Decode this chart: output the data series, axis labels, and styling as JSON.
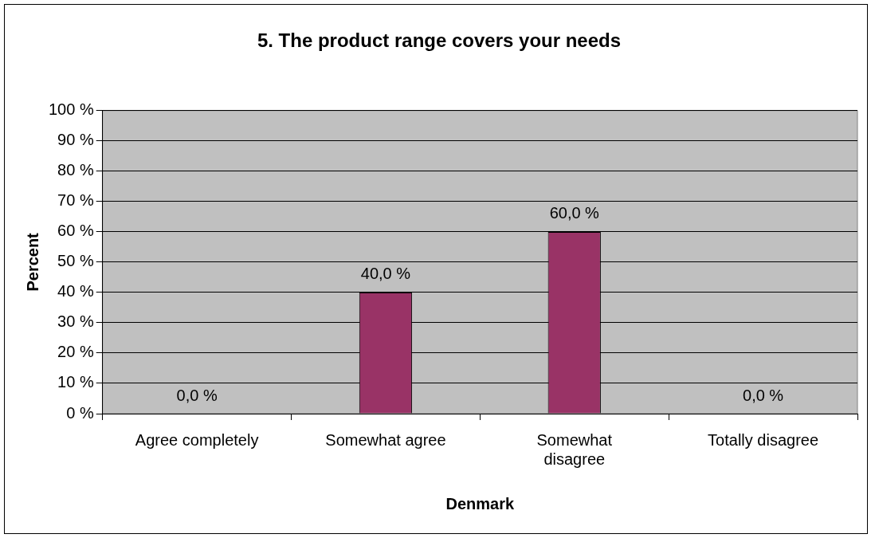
{
  "chart_data": {
    "type": "bar",
    "title": "5. The product range covers your needs",
    "xlabel": "Denmark",
    "ylabel": "Percent",
    "categories": [
      "Agree completely",
      "Somewhat agree",
      "Somewhat disagree",
      "Totally disagree"
    ],
    "values": [
      0,
      40,
      60,
      0
    ],
    "color": "#993366",
    "value_labels": [
      "0,0 %",
      "40,0 %",
      "60,0 %",
      "0,0 %"
    ],
    "ylim": [
      0,
      100
    ],
    "yticks": [
      {
        "value": 0,
        "label": "0 %"
      },
      {
        "value": 10,
        "label": "10 %"
      },
      {
        "value": 20,
        "label": "20 %"
      },
      {
        "value": 30,
        "label": "30 %"
      },
      {
        "value": 40,
        "label": "40 %"
      },
      {
        "value": 50,
        "label": "50 %"
      },
      {
        "value": 60,
        "label": "60 %"
      },
      {
        "value": 70,
        "label": "70 %"
      },
      {
        "value": 80,
        "label": "80 %"
      },
      {
        "value": 90,
        "label": "90 %"
      },
      {
        "value": 100,
        "label": "100 %"
      }
    ],
    "grid": "y",
    "legend": false
  }
}
